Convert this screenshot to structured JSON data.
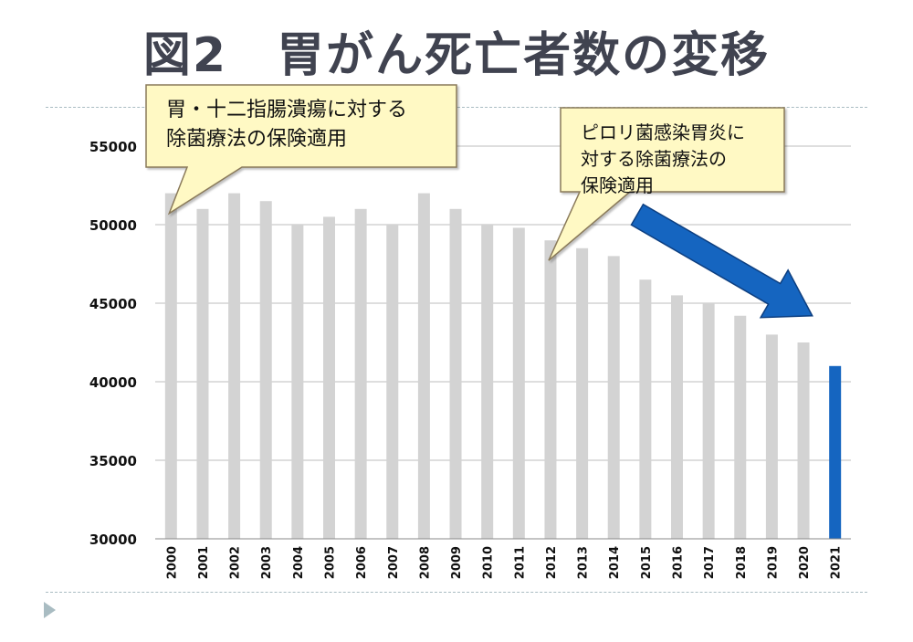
{
  "page": {
    "title": "図2　胃がん死亡者数の変移"
  },
  "colors": {
    "bar_default": "#d3d3d3",
    "bar_highlight": "#1565c0",
    "callout_fill": "#fff9c4",
    "callout_border": "#8a7a5a",
    "arrow": "#1565c0"
  },
  "annotations": [
    {
      "text": [
        "胃・十二指腸潰瘍に対する",
        "除菌療法の保険適用"
      ],
      "points_to": "2000"
    },
    {
      "text": [
        "ピロリ菌感染胃炎に",
        "対する除菌療法の",
        "保険適用"
      ],
      "points_to": "2012"
    }
  ],
  "arrow": {
    "from": "2012",
    "to": "2021",
    "icon": "down-right-arrow-icon"
  },
  "chart_data": {
    "type": "bar",
    "title": "図2　胃がん死亡者数の変移",
    "xlabel": "",
    "ylabel": "",
    "ylim": [
      30000,
      55000
    ],
    "yticks": [
      30000,
      35000,
      40000,
      45000,
      50000,
      55000
    ],
    "grid": true,
    "legend": "none",
    "categories": [
      "2000",
      "2001",
      "2002",
      "2003",
      "2004",
      "2005",
      "2006",
      "2007",
      "2008",
      "2009",
      "2010",
      "2011",
      "2012",
      "2013",
      "2014",
      "2015",
      "2016",
      "2017",
      "2018",
      "2019",
      "2020",
      "2021"
    ],
    "series": [
      {
        "values": [
          52000,
          51000,
          52000,
          51500,
          50000,
          50500,
          51000,
          50000,
          52000,
          51000,
          50000,
          49800,
          49000,
          48500,
          48000,
          46500,
          45500,
          45000,
          44200,
          43000,
          42500,
          41000
        ]
      }
    ],
    "highlight_category": "2021"
  }
}
